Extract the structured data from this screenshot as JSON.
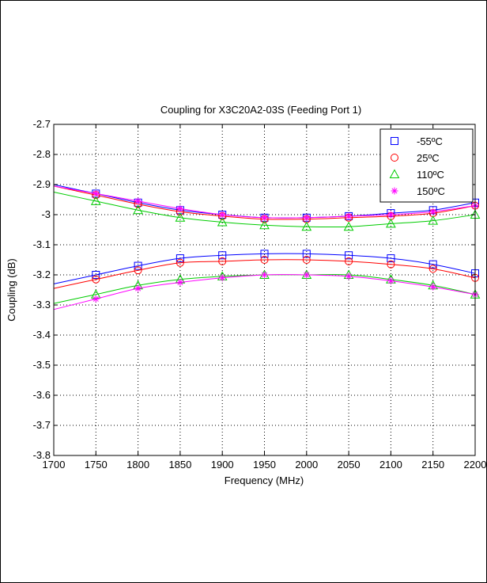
{
  "chart_data": {
    "type": "line",
    "title": "Coupling for X3C20A2-03S (Feeding Port 1)",
    "xlabel": "Frequency (MHz)",
    "ylabel": "Coupling (dB)",
    "xlim": [
      1700,
      2200
    ],
    "ylim": [
      -3.8,
      -2.7
    ],
    "xticks": [
      "1700",
      "1750",
      "1800",
      "1850",
      "1900",
      "1950",
      "2000",
      "2050",
      "2100",
      "2150",
      "2200"
    ],
    "yticks": [
      "-2.7",
      "-2.8",
      "-2.9",
      "-3",
      "-3.1",
      "-3.2",
      "-3.3",
      "-3.4",
      "-3.5",
      "-3.6",
      "-3.7",
      "-3.8"
    ],
    "grid": true,
    "legend_position": "top-right",
    "x": [
      1750,
      1800,
      1850,
      1900,
      1950,
      2000,
      2050,
      2100,
      2150,
      2200
    ],
    "series": [
      {
        "name": "-55ºC",
        "color": "#0000ff",
        "marker": "square",
        "upper": [
          -2.93,
          -2.96,
          -2.985,
          -3.0,
          -3.01,
          -3.01,
          -3.005,
          -2.995,
          -2.985,
          -2.96
        ],
        "lower": [
          -3.2,
          -3.17,
          -3.145,
          -3.135,
          -3.13,
          -3.13,
          -3.135,
          -3.145,
          -3.165,
          -3.195
        ]
      },
      {
        "name": "25ºC",
        "color": "#ff0000",
        "marker": "circle",
        "upper": [
          -2.935,
          -2.965,
          -2.99,
          -3.005,
          -3.015,
          -3.015,
          -3.01,
          -3.005,
          -2.995,
          -2.97
        ],
        "lower": [
          -3.215,
          -3.185,
          -3.16,
          -3.155,
          -3.15,
          -3.15,
          -3.155,
          -3.165,
          -3.18,
          -3.21
        ]
      },
      {
        "name": "110ºC",
        "color": "#00cc00",
        "marker": "triangle",
        "upper": [
          -2.955,
          -2.985,
          -3.01,
          -3.025,
          -3.035,
          -3.04,
          -3.04,
          -3.03,
          -3.02,
          -3.0
        ],
        "lower": [
          -3.265,
          -3.235,
          -3.215,
          -3.205,
          -3.2,
          -3.2,
          -3.2,
          -3.215,
          -3.235,
          -3.265
        ]
      },
      {
        "name": "150ºC",
        "color": "#ff00ff",
        "marker": "star",
        "upper": [
          -2.93,
          -2.955,
          -2.98,
          -3.0,
          -3.01,
          -3.01,
          -3.005,
          -3.0,
          -2.99,
          -2.97
        ],
        "lower": [
          -3.28,
          -3.245,
          -3.225,
          -3.21,
          -3.2,
          -3.2,
          -3.205,
          -3.22,
          -3.24,
          -3.265
        ]
      }
    ]
  }
}
